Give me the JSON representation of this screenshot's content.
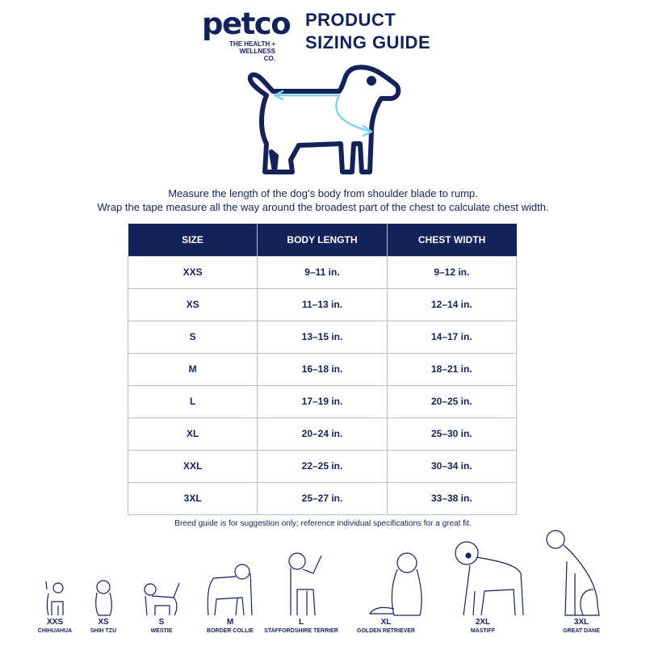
{
  "brand": {
    "logo": "petco",
    "tagline_1": "THE HEALTH +",
    "tagline_2": "WELLNESS CO."
  },
  "title": {
    "line1": "PRODUCT",
    "line2": "SIZING GUIDE"
  },
  "instructions": {
    "line1": "Measure the length of the dog’s body from shoulder blade to rump.",
    "line2": "Wrap the tape measure all the way around the broadest part of the chest to calculate chest width."
  },
  "table": {
    "headers": [
      "SIZE",
      "BODY LENGTH",
      "CHEST WIDTH"
    ],
    "rows": [
      [
        "XXS",
        "9–11 in.",
        "9–12 in."
      ],
      [
        "XS",
        "11–13  in.",
        "12–14 in."
      ],
      [
        "S",
        "13–15 in.",
        "14–17 in."
      ],
      [
        "M",
        "16–18 in.",
        "18–21 in."
      ],
      [
        "L",
        "17–19 in.",
        "20–25 in."
      ],
      [
        "XL",
        "20–24 in.",
        "25–30 in."
      ],
      [
        "XXL",
        "22–25 in.",
        "30–34 in."
      ],
      [
        "3XL",
        "25–27 in.",
        "33–38 in."
      ]
    ]
  },
  "note": "Breed guide is for suggestion only; reference individual specifications for a great fit.",
  "breeds": [
    {
      "size": "XXS",
      "breed": "CHIHUAHUA"
    },
    {
      "size": "XS",
      "breed": "SHIH TZU"
    },
    {
      "size": "S",
      "breed": "WESTIE"
    },
    {
      "size": "M",
      "breed": "BORDER COLLIE"
    },
    {
      "size": "L",
      "breed": "STAFFORDSHIRE TERRIER"
    },
    {
      "size": "XL",
      "breed": "GOLDEN RETRIEVER"
    },
    {
      "size": "2XL",
      "breed": "MASTIFF"
    },
    {
      "size": "3XL",
      "breed": "GREAT DANE"
    }
  ],
  "colors": {
    "navy": "#14225a",
    "measure_arrow": "#7fd3ec"
  }
}
